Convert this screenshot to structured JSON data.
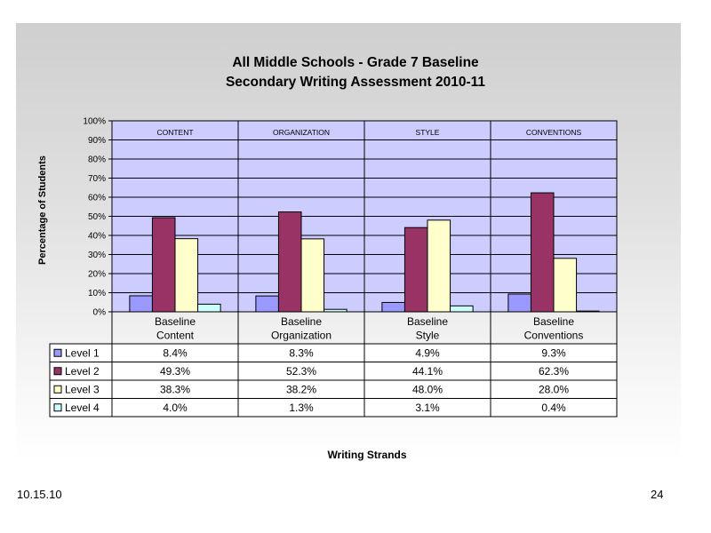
{
  "slide": {
    "footer_date": "10.15.10",
    "page_number": "24"
  },
  "chart_data": {
    "type": "bar",
    "title": [
      "All Middle Schools - Grade 7 Baseline",
      "Secondary Writing Assessment 2010-11"
    ],
    "xlabel": "Writing Strands",
    "ylabel": "Percentage of Students",
    "ylim": [
      0,
      100
    ],
    "y_ticks": [
      "0%",
      "10%",
      "20%",
      "30%",
      "40%",
      "50%",
      "60%",
      "70%",
      "80%",
      "90%",
      "100%"
    ],
    "grid": true,
    "panel_labels": [
      "CONTENT",
      "ORGANIZATION",
      "STYLE",
      "CONVENTIONS"
    ],
    "categories": [
      [
        "Baseline",
        "Content"
      ],
      [
        "Baseline",
        "Organization"
      ],
      [
        "Baseline",
        "Style"
      ],
      [
        "Baseline",
        "Conventions"
      ]
    ],
    "series": [
      {
        "name": "Level 1",
        "color": "#9999ff",
        "values": [
          8.4,
          8.3,
          4.9,
          9.3
        ],
        "labels": [
          "8.4%",
          "8.3%",
          "4.9%",
          "9.3%"
        ]
      },
      {
        "name": "Level 2",
        "color": "#993366",
        "values": [
          49.3,
          52.3,
          44.1,
          62.3
        ],
        "labels": [
          "49.3%",
          "52.3%",
          "44.1%",
          "62.3%"
        ]
      },
      {
        "name": "Level 3",
        "color": "#ffffcc",
        "values": [
          38.3,
          38.2,
          48.0,
          28.0
        ],
        "labels": [
          "38.3%",
          "38.2%",
          "48.0%",
          "28.0%"
        ]
      },
      {
        "name": "Level 4",
        "color": "#ccffff",
        "values": [
          4.0,
          1.3,
          3.1,
          0.4
        ],
        "labels": [
          "4.0%",
          "1.3%",
          "3.1%",
          "0.4%"
        ]
      }
    ],
    "plot_background": "#ccccff",
    "legend": "data-table"
  }
}
